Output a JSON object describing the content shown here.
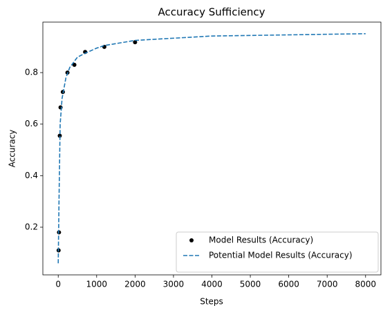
{
  "chart_data": {
    "type": "scatter",
    "title": "Accuracy Sufficiency",
    "xlabel": "Steps",
    "ylabel": "Accuracy",
    "series": [
      {
        "name": "Model Results (Accuracy)",
        "type": "scatter",
        "color": "#000000",
        "x": [
          10,
          20,
          40,
          60,
          120,
          240,
          420,
          700,
          1200,
          2000
        ],
        "values": [
          0.11,
          0.18,
          0.555,
          0.665,
          0.725,
          0.8,
          0.83,
          0.88,
          0.9,
          0.918
        ]
      },
      {
        "name": "Potential Model Results (Accuracy)",
        "type": "line",
        "color": "#1f77b4",
        "dashed": true,
        "x": [
          0,
          20,
          50,
          100,
          200,
          300,
          500,
          700,
          1000,
          1200,
          2000,
          4000,
          8000
        ],
        "values": [
          0.06,
          0.3,
          0.6,
          0.7,
          0.78,
          0.82,
          0.86,
          0.875,
          0.895,
          0.905,
          0.925,
          0.942,
          0.951
        ]
      }
    ],
    "xlim": [
      -400,
      8400
    ],
    "ylim": [
      0.015,
      0.996
    ],
    "xticks": [
      0,
      1000,
      2000,
      3000,
      4000,
      5000,
      6000,
      7000,
      8000
    ],
    "yticks": [
      0.2,
      0.4,
      0.6,
      0.8
    ],
    "legend": "lower right"
  }
}
